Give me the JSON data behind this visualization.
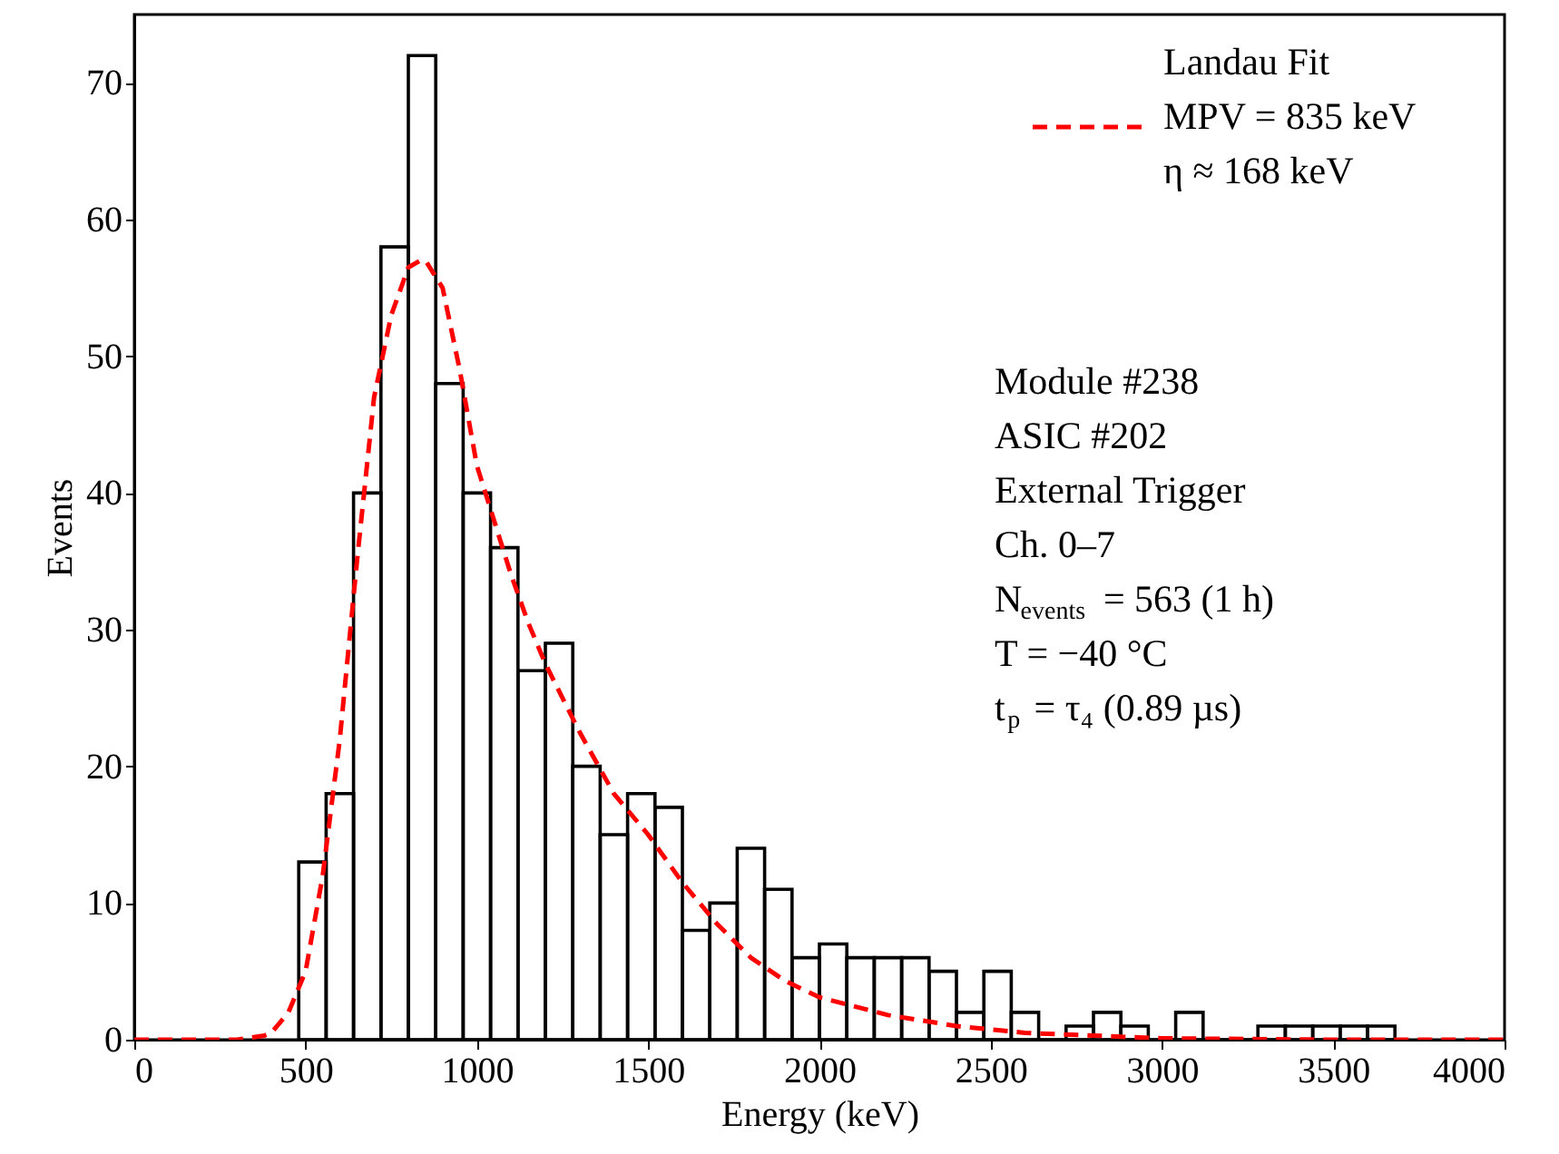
{
  "chart_data": {
    "type": "histogram",
    "xlabel": "Energy (keV)",
    "ylabel": "Events",
    "bins": [
      480,
      560,
      640,
      720,
      800,
      880,
      960,
      1040,
      1120,
      1200,
      1280,
      1360,
      1440,
      1520,
      1600,
      1680,
      1760,
      1840,
      1920,
      2000,
      2080,
      2160,
      2240,
      2320,
      2400,
      2480,
      2560,
      2640,
      2720,
      2800,
      2880,
      2960,
      3040,
      3120,
      3200,
      3280,
      3360,
      3440,
      3520,
      3600,
      3680
    ],
    "values": [
      13,
      18,
      40,
      58,
      72,
      48,
      40,
      36,
      27,
      29,
      20,
      15,
      18,
      17,
      8,
      10,
      14,
      11,
      6,
      7,
      6,
      6,
      6,
      5,
      2,
      5,
      2,
      0,
      1,
      2,
      1,
      0,
      2,
      0,
      0,
      1,
      1,
      1,
      1,
      1
    ],
    "color": "#000000",
    "series": [
      {
        "name": "Landau Fit\nMPV = 835 keV\nη ≈ 168 keV",
        "type": "line",
        "color": "#ff0000",
        "line_style": "dashed",
        "x": [
          0,
          300,
          380,
          400,
          450,
          500,
          550,
          600,
          650,
          700,
          750,
          800,
          835,
          850,
          900,
          950,
          1000,
          1050,
          1100,
          1150,
          1200,
          1250,
          1300,
          1400,
          1500,
          1600,
          1700,
          1800,
          1900,
          2000,
          2200,
          2400,
          2600,
          2800,
          3000,
          3500,
          4000
        ],
        "values": [
          0,
          0,
          0.3,
          0.5,
          2,
          5,
          12,
          22,
          35,
          47,
          53,
          56.5,
          57,
          57,
          55,
          49,
          42,
          38,
          34,
          30.5,
          27.5,
          25,
          22.5,
          18,
          15,
          11.5,
          8.5,
          6,
          4.3,
          3.1,
          1.8,
          1,
          0.5,
          0.3,
          0.1,
          0,
          0
        ]
      }
    ],
    "annotations": [
      "Module #238",
      "ASIC #202",
      "External Trigger",
      "Ch. 0–7",
      "N$_{events}$ = 563 (1 h)",
      "T = −40 °C",
      "t$_{p}$ = τ₄ (0.89 µs)"
    ],
    "xlim": [
      0,
      4000
    ],
    "xticks": [
      0,
      500,
      1000,
      1500,
      2000,
      2500,
      3000,
      3500,
      4000
    ],
    "ylim": [
      0,
      75
    ],
    "yticks": [
      0,
      10,
      20,
      30,
      40,
      50,
      60,
      70
    ],
    "legend": "top right",
    "grid": false
  }
}
